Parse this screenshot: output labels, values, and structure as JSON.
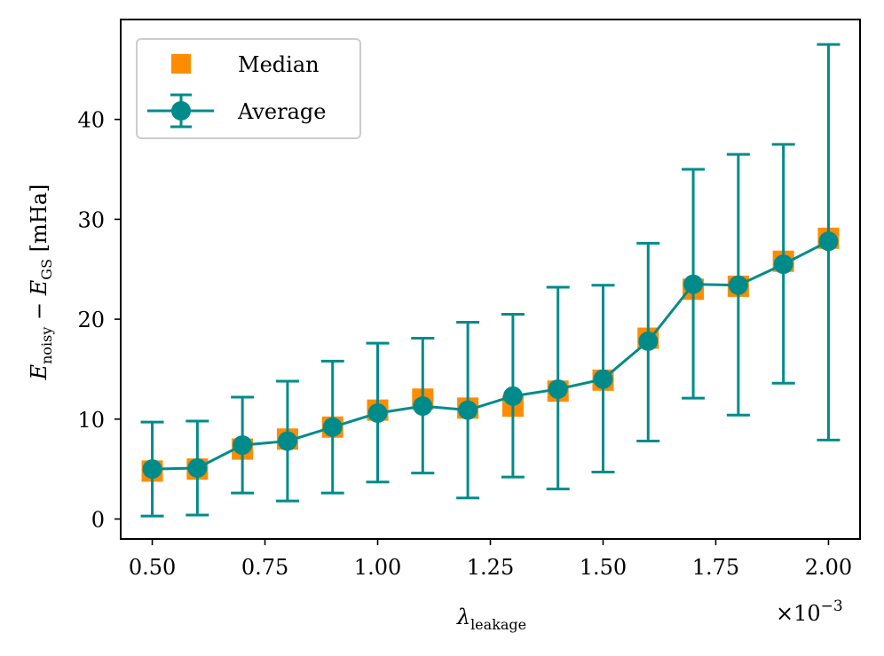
{
  "chart_data": {
    "type": "line",
    "x": [
      0.5,
      0.6,
      0.7,
      0.8,
      0.9,
      1.0,
      1.1,
      1.2,
      1.3,
      1.4,
      1.5,
      1.6,
      1.7,
      1.8,
      1.9,
      2.0
    ],
    "xlabel": {
      "main": "λ",
      "sub": "leakage"
    },
    "x_multiplier": {
      "base": "×10",
      "exp": "−3"
    },
    "ylabel": {
      "e1": "E",
      "sub1": "noisy",
      "op": " − ",
      "e2": "E",
      "sub2": "GS",
      "unit": " [mHa]"
    },
    "xlim": [
      0.43,
      2.07
    ],
    "ylim": [
      -2,
      50
    ],
    "xticks": [
      0.5,
      0.75,
      1.0,
      1.25,
      1.5,
      1.75,
      2.0
    ],
    "xtick_labels": [
      "0.50",
      "0.75",
      "1.00",
      "1.25",
      "1.50",
      "1.75",
      "2.00"
    ],
    "yticks": [
      0,
      10,
      20,
      30,
      40
    ],
    "ytick_labels": [
      "0",
      "10",
      "20",
      "30",
      "40"
    ],
    "grid": false,
    "legend_position": "top-left",
    "series": [
      {
        "name": "Median",
        "kind": "scatter",
        "marker": "square",
        "color": "#ff8c00",
        "values": [
          4.8,
          5.0,
          7.0,
          8.0,
          9.2,
          10.9,
          12.0,
          11.1,
          11.3,
          12.8,
          13.9,
          18.1,
          23.0,
          23.3,
          25.8,
          28.1
        ]
      },
      {
        "name": "Average",
        "kind": "line-errorbar",
        "marker": "circle",
        "color": "#008b8b",
        "values": [
          5.0,
          5.1,
          7.4,
          7.8,
          9.2,
          10.6,
          11.3,
          10.9,
          12.3,
          13.0,
          14.0,
          17.8,
          23.5,
          23.4,
          25.5,
          27.8
        ],
        "err_low": [
          0.3,
          0.4,
          2.6,
          1.8,
          2.6,
          3.7,
          4.6,
          2.1,
          4.2,
          3.0,
          4.7,
          7.8,
          12.1,
          10.4,
          13.6,
          7.9
        ],
        "err_high": [
          9.7,
          9.8,
          12.2,
          13.8,
          15.8,
          17.6,
          18.1,
          19.7,
          20.5,
          23.2,
          23.4,
          27.6,
          35.0,
          36.5,
          37.5,
          47.5
        ]
      }
    ]
  }
}
